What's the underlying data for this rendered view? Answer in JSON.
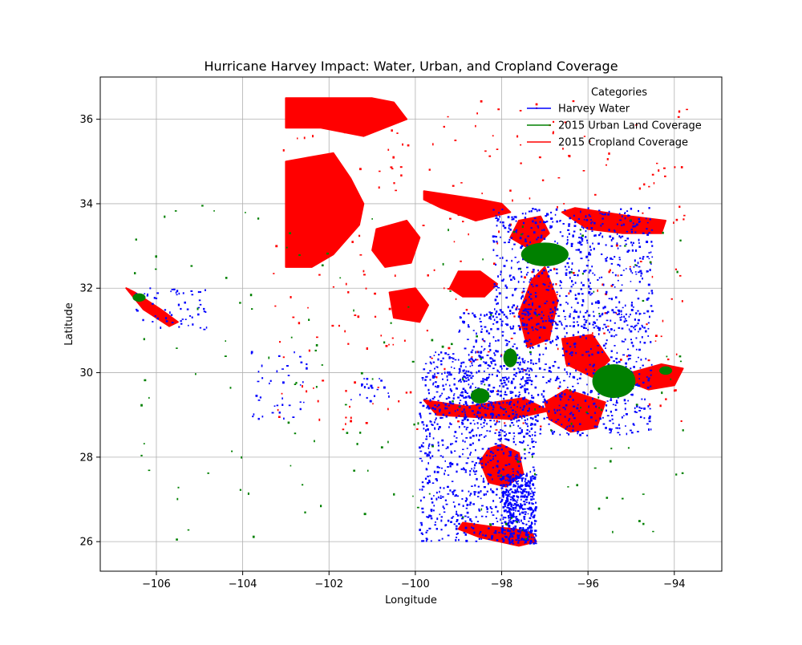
{
  "chart_data": {
    "type": "scatter",
    "title": "Hurricane Harvey Impact: Water, Urban, and Cropland Coverage",
    "xlabel": "Longitude",
    "ylabel": "Latitude",
    "xlim": [
      -107.3,
      -92.9
    ],
    "ylim": [
      25.3,
      37.0
    ],
    "x_ticks": [
      -106,
      -104,
      -102,
      -100,
      -98,
      -96,
      -94
    ],
    "y_ticks": [
      26,
      28,
      30,
      32,
      34,
      36
    ],
    "x_tick_labels": [
      "−106",
      "−104",
      "−102",
      "−100",
      "−98",
      "−96",
      "−94"
    ],
    "y_tick_labels": [
      "26",
      "28",
      "30",
      "32",
      "34",
      "36"
    ],
    "grid": true,
    "legend": {
      "title": "Categories",
      "placement": "top-right",
      "entries": [
        {
          "label": "Harvey Water",
          "color": "#0000ff"
        },
        {
          "label": "2015 Urban Land Coverage",
          "color": "#008000"
        },
        {
          "label": "2015 Cropland Coverage",
          "color": "#ff0000"
        }
      ]
    },
    "series": [
      {
        "name": "Harvey Water",
        "color": "#0000ff",
        "regions": [
          {
            "type": "scatter",
            "lon": [
              -99.9,
              -97.2
            ],
            "lat": [
              26.0,
              30.5
            ],
            "count": 900
          },
          {
            "type": "scatter",
            "lon": [
              -99.0,
              -94.5
            ],
            "lat": [
              28.5,
              31.5
            ],
            "count": 700
          },
          {
            "type": "scatter",
            "lon": [
              -98.2,
              -94.5
            ],
            "lat": [
              31.0,
              33.9
            ],
            "count": 650
          },
          {
            "type": "scatter",
            "lon": [
              -98.0,
              -97.2
            ],
            "lat": [
              25.95,
              27.6
            ],
            "count": 380
          },
          {
            "type": "scatter",
            "lon": [
              -106.5,
              -104.8
            ],
            "lat": [
              31.0,
              32.0
            ],
            "count": 60
          },
          {
            "type": "scatter",
            "lon": [
              -103.8,
              -102.5
            ],
            "lat": [
              28.9,
              30.5
            ],
            "count": 40
          },
          {
            "type": "scatter",
            "lon": [
              -101.5,
              -100.6
            ],
            "lat": [
              29.3,
              29.9
            ],
            "count": 20
          }
        ]
      },
      {
        "name": "2015 Urban Land Coverage",
        "color": "#008000",
        "regions": [
          {
            "type": "blob",
            "lon": -97.0,
            "lat": 32.8,
            "rx": 0.55,
            "ry": 0.28
          },
          {
            "type": "blob",
            "lon": -95.4,
            "lat": 29.8,
            "rx": 0.5,
            "ry": 0.4
          },
          {
            "type": "blob",
            "lon": -98.5,
            "lat": 29.45,
            "rx": 0.22,
            "ry": 0.18
          },
          {
            "type": "blob",
            "lon": -97.8,
            "lat": 30.35,
            "rx": 0.16,
            "ry": 0.22
          },
          {
            "type": "blob",
            "lon": -94.2,
            "lat": 30.05,
            "rx": 0.15,
            "ry": 0.1
          },
          {
            "type": "blob",
            "lon": -106.4,
            "lat": 31.78,
            "rx": 0.15,
            "ry": 0.1
          },
          {
            "type": "scatter",
            "lon": [
              -106.5,
              -93.7
            ],
            "lat": [
              26.0,
              34.0
            ],
            "count": 170
          }
        ]
      },
      {
        "name": "2015 Cropland Coverage",
        "color": "#ff0000",
        "regions": [
          {
            "type": "polygon",
            "lon": [
              -103.0,
              -101.0,
              -100.5,
              -100.2,
              -101.2,
              -102.2,
              -103.0
            ],
            "lat": [
              36.5,
              36.5,
              36.4,
              36.0,
              35.6,
              35.8,
              35.8
            ]
          },
          {
            "type": "polygon",
            "lon": [
              -103.0,
              -101.9,
              -101.5,
              -101.2,
              -101.3,
              -101.9,
              -102.4,
              -103.0
            ],
            "lat": [
              35.0,
              35.2,
              34.6,
              34.0,
              33.5,
              32.8,
              32.5,
              32.5
            ]
          },
          {
            "type": "polygon",
            "lon": [
              -99.8,
              -98.5,
              -98.0,
              -97.8,
              -98.6,
              -99.4,
              -99.8
            ],
            "lat": [
              34.3,
              34.1,
              34.0,
              33.8,
              33.6,
              33.9,
              34.1
            ]
          },
          {
            "type": "polygon",
            "lon": [
              -97.0,
              -96.7,
              -96.9,
              -97.4,
              -97.6,
              -97.3
            ],
            "lat": [
              32.5,
              31.7,
              30.8,
              30.6,
              31.4,
              32.2
            ]
          },
          {
            "type": "polygon",
            "lon": [
              -96.5,
              -95.6,
              -95.8,
              -96.4,
              -96.9,
              -97.0
            ],
            "lat": [
              29.6,
              29.3,
              28.7,
              28.6,
              28.9,
              29.3
            ]
          },
          {
            "type": "polygon",
            "lon": [
              -98.0,
              -97.6,
              -97.5,
              -97.9,
              -98.3,
              -98.5,
              -98.3
            ],
            "lat": [
              28.3,
              28.1,
              27.6,
              27.3,
              27.4,
              27.9,
              28.2
            ]
          },
          {
            "type": "polygon",
            "lon": [
              -98.9,
              -98.2,
              -97.7,
              -97.3,
              -97.2,
              -97.6,
              -98.5,
              -99.0
            ],
            "lat": [
              26.45,
              26.35,
              26.3,
              26.2,
              26.0,
              25.9,
              26.1,
              26.3
            ]
          },
          {
            "type": "polygon",
            "lon": [
              -99.8,
              -98.8,
              -97.5,
              -96.9,
              -97.8,
              -99.5
            ],
            "lat": [
              29.35,
              29.2,
              29.4,
              29.1,
              28.9,
              29.0
            ]
          },
          {
            "type": "polygon",
            "lon": [
              -96.6,
              -96.3,
              -95.0,
              -94.2,
              -94.3,
              -95.2,
              -96.0
            ],
            "lat": [
              33.8,
              33.9,
              33.7,
              33.6,
              33.3,
              33.3,
              33.4
            ]
          },
          {
            "type": "polygon",
            "lon": [
              -95.0,
              -94.3,
              -93.8,
              -94.0,
              -94.6,
              -95.1
            ],
            "lat": [
              30.0,
              30.2,
              30.1,
              29.7,
              29.6,
              29.8
            ]
          },
          {
            "type": "polygon",
            "lon": [
              -100.9,
              -100.2,
              -99.9,
              -100.1,
              -100.7,
              -101.0
            ],
            "lat": [
              33.4,
              33.6,
              33.2,
              32.6,
              32.5,
              32.9
            ]
          },
          {
            "type": "polygon",
            "lon": [
              -99.0,
              -98.5,
              -98.1,
              -98.4,
              -98.9,
              -99.2
            ],
            "lat": [
              32.4,
              32.4,
              32.1,
              31.8,
              31.8,
              32.0
            ]
          },
          {
            "type": "polygon",
            "lon": [
              -100.6,
              -100.0,
              -99.7,
              -99.9,
              -100.5
            ],
            "lat": [
              31.9,
              32.0,
              31.6,
              31.2,
              31.3
            ]
          },
          {
            "type": "polygon",
            "lon": [
              -97.6,
              -97.1,
              -96.9,
              -97.3,
              -97.8
            ],
            "lat": [
              33.6,
              33.7,
              33.3,
              32.9,
              33.2
            ]
          },
          {
            "type": "polygon",
            "lon": [
              -96.6,
              -95.9,
              -95.5,
              -95.9,
              -96.5
            ],
            "lat": [
              30.8,
              30.9,
              30.3,
              29.9,
              30.2
            ]
          },
          {
            "type": "polygon",
            "lon": [
              -106.7,
              -106.5,
              -105.9,
              -105.5,
              -105.7,
              -106.3
            ],
            "lat": [
              32.0,
              31.9,
              31.5,
              31.2,
              31.1,
              31.5
            ]
          },
          {
            "type": "scatter",
            "lon": [
              -103.3,
              -93.6
            ],
            "lat": [
              28.6,
              36.5
            ],
            "count": 320
          }
        ]
      }
    ]
  }
}
